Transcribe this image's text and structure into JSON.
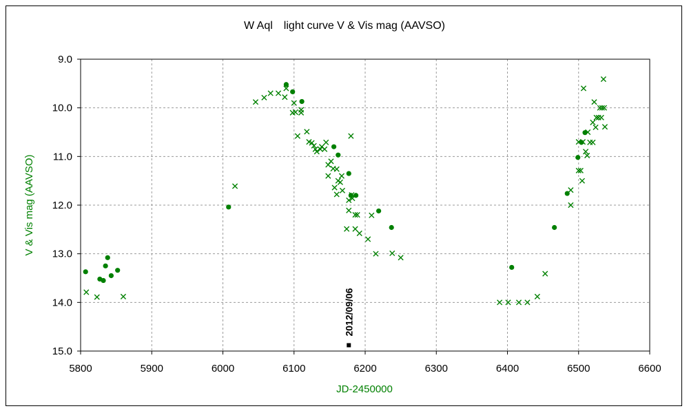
{
  "chart_data": {
    "type": "scatter",
    "title": "W Aql　light curve  V & Vis mag (AAVSO)",
    "xlabel": "JD-2450000",
    "ylabel": "V & Vis mag (AAVSO)",
    "xlim": [
      5800,
      6600
    ],
    "ylim": [
      9.0,
      15.0
    ],
    "y_inverted": true,
    "grid": true,
    "x_ticks": [
      5800,
      5900,
      6000,
      6100,
      6200,
      6300,
      6400,
      6500,
      6600
    ],
    "y_ticks": [
      "9.0",
      "10.0",
      "11.0",
      "12.0",
      "13.0",
      "14.0",
      "15.0"
    ],
    "series": [
      {
        "marker": "circle",
        "color": "#008000",
        "points": [
          [
            5807,
            13.37
          ],
          [
            5827,
            13.52
          ],
          [
            5832,
            13.55
          ],
          [
            5835,
            13.25
          ],
          [
            5838,
            13.08
          ],
          [
            5843,
            13.45
          ],
          [
            5852,
            13.34
          ],
          [
            6008,
            12.04
          ],
          [
            6089,
            9.52
          ],
          [
            6098,
            9.67
          ],
          [
            6111,
            9.87
          ],
          [
            6156,
            10.8
          ],
          [
            6162,
            10.97
          ],
          [
            6177,
            11.35
          ],
          [
            6180,
            11.8
          ],
          [
            6187,
            11.8
          ],
          [
            6219,
            12.12
          ],
          [
            6237,
            12.46
          ],
          [
            6406,
            13.28
          ],
          [
            6466,
            12.46
          ],
          [
            6484,
            11.76
          ],
          [
            6499,
            11.02
          ],
          [
            6504,
            10.71
          ],
          [
            6509,
            10.51
          ]
        ]
      },
      {
        "marker": "x",
        "color": "#008000",
        "points": [
          [
            5808,
            13.79
          ],
          [
            5823,
            13.89
          ],
          [
            5860,
            13.88
          ],
          [
            6017,
            11.61
          ],
          [
            6046,
            9.88
          ],
          [
            6058,
            9.79
          ],
          [
            6067,
            9.7
          ],
          [
            6078,
            9.7
          ],
          [
            6087,
            9.78
          ],
          [
            6089,
            9.6
          ],
          [
            6098,
            10.1
          ],
          [
            6100,
            9.9
          ],
          [
            6102,
            10.09
          ],
          [
            6105,
            10.58
          ],
          [
            6110,
            10.04
          ],
          [
            6110,
            10.1
          ],
          [
            6118,
            10.49
          ],
          [
            6121,
            10.7
          ],
          [
            6125,
            10.72
          ],
          [
            6128,
            10.78
          ],
          [
            6130,
            10.85
          ],
          [
            6132,
            10.9
          ],
          [
            6137,
            10.85
          ],
          [
            6139,
            10.8
          ],
          [
            6143,
            10.85
          ],
          [
            6145,
            10.71
          ],
          [
            6148,
            11.17
          ],
          [
            6148,
            11.4
          ],
          [
            6152,
            11.1
          ],
          [
            6155,
            11.25
          ],
          [
            6157,
            11.64
          ],
          [
            6160,
            11.26
          ],
          [
            6160,
            11.78
          ],
          [
            6162,
            11.5
          ],
          [
            6165,
            11.53
          ],
          [
            6167,
            11.4
          ],
          [
            6168,
            11.7
          ],
          [
            6174,
            12.49
          ],
          [
            6177,
            11.9
          ],
          [
            6177,
            12.11
          ],
          [
            6180,
            10.58
          ],
          [
            6181,
            11.79
          ],
          [
            6182,
            11.86
          ],
          [
            6186,
            12.49
          ],
          [
            6186,
            12.2
          ],
          [
            6189,
            12.2
          ],
          [
            6192,
            12.58
          ],
          [
            6204,
            12.7
          ],
          [
            6209,
            12.21
          ],
          [
            6215,
            13.0
          ],
          [
            6238,
            12.99
          ],
          [
            6250,
            13.08
          ],
          [
            6389,
            14.0
          ],
          [
            6401,
            14.0
          ],
          [
            6416,
            14.0
          ],
          [
            6428,
            14.0
          ],
          [
            6442,
            13.88
          ],
          [
            6453,
            13.41
          ],
          [
            6489,
            11.69
          ],
          [
            6489,
            12.0
          ],
          [
            6500,
            10.7
          ],
          [
            6500,
            11.29
          ],
          [
            6503,
            11.29
          ],
          [
            6505,
            11.5
          ],
          [
            6506,
            10.7
          ],
          [
            6507,
            9.6
          ],
          [
            6510,
            10.9
          ],
          [
            6512,
            10.98
          ],
          [
            6513,
            10.5
          ],
          [
            6516,
            10.71
          ],
          [
            6520,
            10.71
          ],
          [
            6520,
            10.3
          ],
          [
            6522,
            9.88
          ],
          [
            6524,
            10.4
          ],
          [
            6525,
            10.2
          ],
          [
            6528,
            10.2
          ],
          [
            6530,
            10.0
          ],
          [
            6532,
            10.2
          ],
          [
            6533,
            10.0
          ],
          [
            6535,
            9.41
          ],
          [
            6536,
            10.0
          ],
          [
            6537,
            10.39
          ]
        ]
      }
    ],
    "annotations": [
      {
        "text": "2012/09/06",
        "x": 6177,
        "y": 14.88
      }
    ]
  }
}
